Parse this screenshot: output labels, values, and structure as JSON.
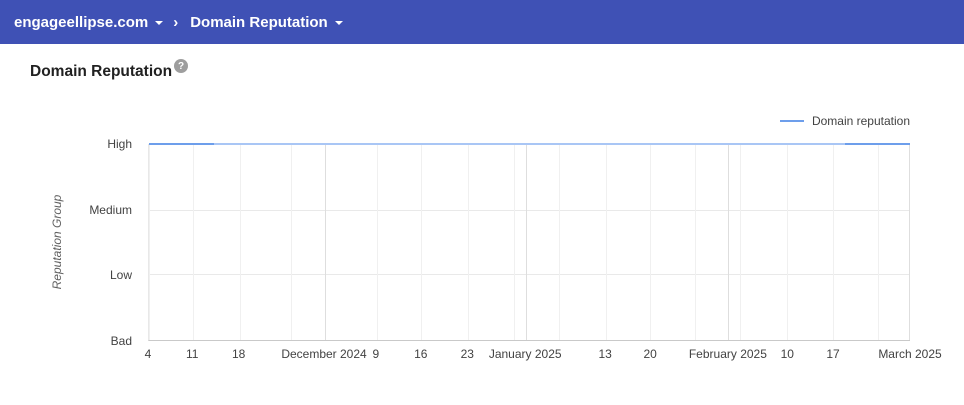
{
  "header": {
    "items": [
      {
        "label": "engageellipse.com"
      },
      {
        "label": "Domain Reputation"
      }
    ],
    "separator": "›"
  },
  "page": {
    "title": "Domain Reputation",
    "help_icon": "?"
  },
  "legend": {
    "label": "Domain reputation"
  },
  "colors": {
    "header_bg": "#3f51b5",
    "line_dark": "#6d9eeb",
    "line_light": "#a9c6f5",
    "grid_week": "#f0f0f0",
    "grid_month": "#dedede",
    "axis": "#c9c9c9"
  },
  "chart_data": {
    "type": "line",
    "title": "Domain Reputation",
    "ylabel": "Reputation Group",
    "xlabel": "",
    "y_categories": [
      "High",
      "Medium",
      "Low",
      "Bad"
    ],
    "y_ticks": [
      {
        "label": "High",
        "pos": 0
      },
      {
        "label": "Medium",
        "pos": 0.335
      },
      {
        "label": "Low",
        "pos": 0.665
      },
      {
        "label": "Bad",
        "pos": 1
      }
    ],
    "x_ticks": [
      {
        "label": "4",
        "pos": 0.0,
        "month": false
      },
      {
        "label": "11",
        "pos": 0.058,
        "month": false
      },
      {
        "label": "18",
        "pos": 0.119,
        "month": false
      },
      {
        "label": "",
        "pos": 0.186,
        "month": false
      },
      {
        "label": "December 2024",
        "pos": 0.231,
        "month": true
      },
      {
        "label": "9",
        "pos": 0.299,
        "month": false
      },
      {
        "label": "16",
        "pos": 0.358,
        "month": false
      },
      {
        "label": "23",
        "pos": 0.419,
        "month": false
      },
      {
        "label": "",
        "pos": 0.479,
        "month": false
      },
      {
        "label": "January 2025",
        "pos": 0.495,
        "month": true
      },
      {
        "label": "",
        "pos": 0.539,
        "month": false
      },
      {
        "label": "13",
        "pos": 0.6,
        "month": false
      },
      {
        "label": "20",
        "pos": 0.659,
        "month": false
      },
      {
        "label": "",
        "pos": 0.718,
        "month": false
      },
      {
        "label": "February 2025",
        "pos": 0.761,
        "month": true
      },
      {
        "label": "",
        "pos": 0.777,
        "month": false
      },
      {
        "label": "10",
        "pos": 0.839,
        "month": false
      },
      {
        "label": "17",
        "pos": 0.899,
        "month": false
      },
      {
        "label": "",
        "pos": 0.958,
        "month": false
      },
      {
        "label": "March 2025",
        "pos": 1.0,
        "month": true
      }
    ],
    "series": [
      {
        "name": "Domain reputation",
        "value_all_period": "High",
        "segments": [
          {
            "from": 0.0,
            "to": 0.085,
            "color": "#6d9eeb"
          },
          {
            "from": 0.085,
            "to": 0.915,
            "color": "#a9c6f5"
          },
          {
            "from": 0.915,
            "to": 1.0,
            "color": "#6d9eeb"
          }
        ]
      }
    ],
    "legend_position": "top-right",
    "grid": true
  }
}
